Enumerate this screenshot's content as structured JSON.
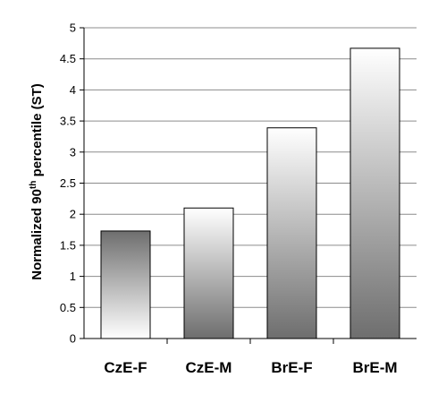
{
  "chart_data": {
    "type": "bar",
    "categories": [
      "CzE-F",
      "CzE-M",
      "BrE-F",
      "BrE-M"
    ],
    "values": [
      1.73,
      2.1,
      3.39,
      4.67
    ],
    "ylabel": {
      "before": "Normalized 90",
      "superscript": "th",
      "after": " percentile (ST)"
    },
    "ylim": [
      0,
      5
    ],
    "yticks": [
      "0",
      "0.5",
      "1",
      "1.5",
      "2",
      "2.5",
      "3",
      "3.5",
      "4",
      "4.5",
      "5"
    ],
    "grid": true,
    "bar_fills": [
      "light-bottom",
      "dark-bottom",
      "light-top",
      "dark-bottom"
    ],
    "colors": {
      "gradient_dark": "#6e6e6e",
      "gradient_light": "#ffffff",
      "gridline": "#8c8c8c",
      "bar_outline": "#000000"
    }
  }
}
